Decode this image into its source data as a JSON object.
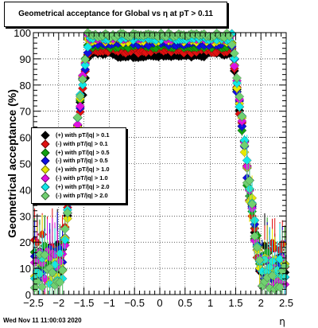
{
  "chart_data": {
    "type": "scatter",
    "title": "Geometrical acceptance for Global vs    η at pT > 0.11",
    "xlabel": "η",
    "ylabel": "Geometrical acceptance (%)",
    "xlim": [
      -2.5,
      2.5
    ],
    "ylim": [
      0,
      100
    ],
    "x_ticks": [
      "−2.5",
      "−2",
      "−1.5",
      "−1",
      "−0.5",
      "0",
      "0.5",
      "1",
      "1.5",
      "2",
      "2.5"
    ],
    "y_ticks": [
      "0",
      "10",
      "20",
      "30",
      "40",
      "50",
      "60",
      "70",
      "80",
      "90",
      "100"
    ],
    "grid": true,
    "legend_position": "left-middle",
    "series": [
      {
        "name": "(+) with pT/|q| > 0.1",
        "color": "#000000",
        "plateau": 92,
        "lowfloor": 7
      },
      {
        "name": "(-) with pT/|q| > 0.1",
        "color": "#e01010",
        "plateau": 93,
        "lowfloor": 10
      },
      {
        "name": "(+) with pT/|q| > 0.5",
        "color": "#10a010",
        "plateau": 95,
        "lowfloor": 5
      },
      {
        "name": "(-) with pT/|q| > 0.5",
        "color": "#1010e0",
        "plateau": 96,
        "lowfloor": 4
      },
      {
        "name": "(+) with pT/|q| > 1.0",
        "color": "#e8e800",
        "plateau": 97,
        "lowfloor": 3
      },
      {
        "name": "(-) with pT/|q| > 1.0",
        "color": "#e010e0",
        "plateau": 98,
        "lowfloor": 3
      },
      {
        "name": "(+) with pT/|q| > 2.0",
        "color": "#10e8e8",
        "plateau": 98,
        "lowfloor": 2
      },
      {
        "name": "(-) with pT/|q| > 2.0",
        "color": "#70d070",
        "plateau": 99,
        "lowfloor": 2
      }
    ],
    "edge_points": [
      {
        "x": -1.65,
        "y": 62
      },
      {
        "x": -1.6,
        "y": 75
      },
      {
        "x": -1.55,
        "y": 83
      },
      {
        "x": -1.5,
        "y": 87
      },
      {
        "x": -1.45,
        "y": 90
      },
      {
        "x": 1.45,
        "y": 90
      },
      {
        "x": 1.5,
        "y": 87
      },
      {
        "x": 1.55,
        "y": 82
      },
      {
        "x": 1.6,
        "y": 74
      },
      {
        "x": 1.65,
        "y": 64
      },
      {
        "x": 1.7,
        "y": 55
      },
      {
        "x": 1.75,
        "y": 47
      },
      {
        "x": 1.8,
        "y": 40
      },
      {
        "x": 1.85,
        "y": 32
      },
      {
        "x": 1.9,
        "y": 25
      },
      {
        "x": 1.95,
        "y": 15
      }
    ]
  },
  "footer": {
    "datestamp": "Wed Nov 11 11:00:03 2020"
  }
}
